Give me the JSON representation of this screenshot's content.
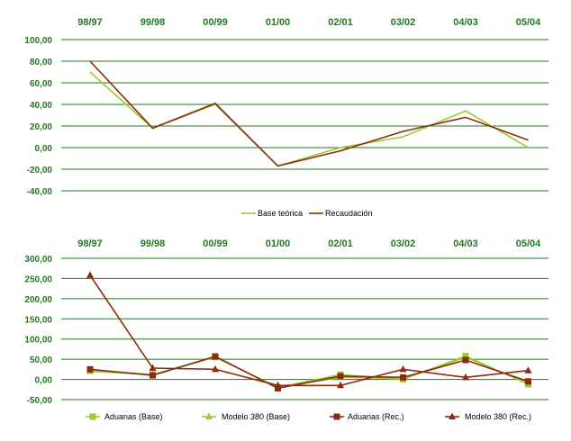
{
  "colors": {
    "green": "#99cc33",
    "brown": "#8b2a0c",
    "axis_text": "#1f7a1f",
    "grid": "#1f7a1f"
  },
  "chart_data": [
    {
      "type": "line",
      "categories": [
        "98/97",
        "99/98",
        "00/99",
        "01/00",
        "02/01",
        "03/02",
        "04/03",
        "05/04"
      ],
      "ylim": [
        -40,
        100
      ],
      "yticks": [
        -40,
        -20,
        0,
        20,
        40,
        60,
        80,
        100
      ],
      "ytick_labels": [
        "-40,00",
        "-20,00",
        "0,00",
        "20,00",
        "40,00",
        "60,00",
        "80,00",
        "100,00"
      ],
      "grid": true,
      "legend_position": "bottom",
      "series": [
        {
          "name": "Base teórica",
          "color": "#99cc33",
          "marker": "none",
          "values": [
            70,
            18,
            40,
            -17,
            0,
            10,
            34,
            0
          ]
        },
        {
          "name": "Recaudación",
          "color": "#8b2a0c",
          "marker": "none",
          "values": [
            80,
            18,
            41,
            -17,
            -3,
            15,
            28,
            7
          ]
        }
      ]
    },
    {
      "type": "line",
      "categories": [
        "98/97",
        "99/98",
        "00/99",
        "01/00",
        "02/01",
        "03/02",
        "04/03",
        "05/04"
      ],
      "ylim": [
        -50,
        300
      ],
      "yticks": [
        -50,
        0,
        50,
        100,
        150,
        200,
        250,
        300
      ],
      "ytick_labels": [
        "-50,00",
        "0,00",
        "50,00",
        "100,00",
        "150,00",
        "200,00",
        "250,00",
        "300,00"
      ],
      "grid": true,
      "legend_position": "bottom",
      "series": [
        {
          "name": "Aduanas (Base)",
          "color": "#99cc33",
          "marker": "square",
          "values": [
            22,
            12,
            55,
            -20,
            12,
            0,
            58,
            -12
          ]
        },
        {
          "name": "Modelo 380 (Base)",
          "color": "#99cc33",
          "marker": "triangle",
          "values": [
            20,
            12,
            55,
            -20,
            5,
            2,
            55,
            -10
          ]
        },
        {
          "name": "Aduanas (Rec.)",
          "color": "#8b2a0c",
          "marker": "square",
          "values": [
            25,
            10,
            57,
            -22,
            8,
            5,
            48,
            -5
          ]
        },
        {
          "name": "Modelo 380 (Rec.)",
          "color": "#8b2a0c",
          "marker": "triangle",
          "values": [
            258,
            28,
            25,
            -15,
            -15,
            25,
            5,
            22
          ]
        }
      ]
    }
  ]
}
